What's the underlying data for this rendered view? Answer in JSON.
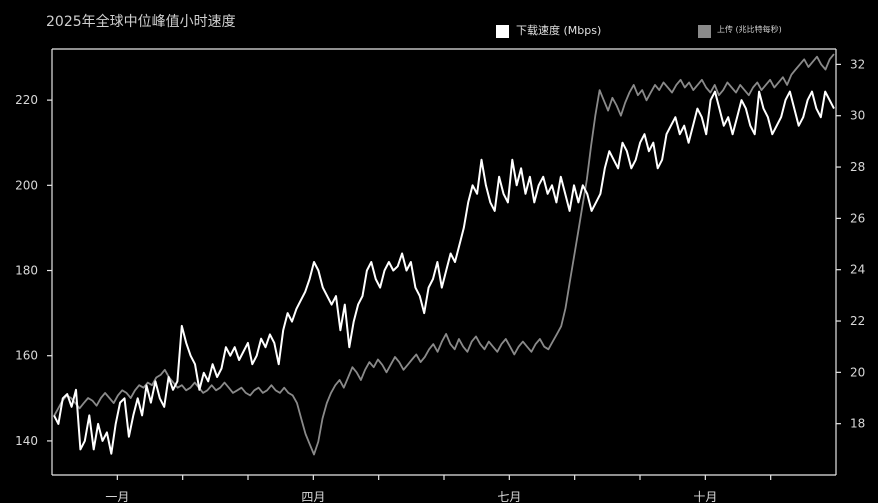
{
  "chart_data": {
    "type": "line",
    "title": "2025年全球中位峰值小时速度",
    "x_ticks": [
      "一月",
      "四月",
      "七月",
      "十月"
    ],
    "y_left": {
      "ticks": [
        140,
        160,
        180,
        200,
        220
      ],
      "lim": [
        132,
        232
      ]
    },
    "y_right": {
      "ticks": [
        18,
        20,
        22,
        24,
        26,
        28,
        30,
        32
      ],
      "lim": [
        16,
        32.6
      ]
    },
    "legend_position": "top",
    "grid": false,
    "series": [
      {
        "name": "下载速度 (Mbps)",
        "axis": "left",
        "color": "#ffffff",
        "values": [
          146,
          144,
          150,
          151,
          148,
          152,
          138,
          140,
          146,
          138,
          144,
          140,
          142,
          137,
          144,
          149,
          150,
          141,
          146,
          150,
          146,
          153,
          149,
          154,
          150,
          148,
          155,
          152,
          154,
          167,
          163,
          160,
          158,
          152,
          156,
          154,
          158,
          155,
          157,
          162,
          160,
          162,
          159,
          161,
          163,
          158,
          160,
          164,
          162,
          165,
          163,
          158,
          166,
          170,
          168,
          171,
          173,
          175,
          178,
          182,
          180,
          176,
          174,
          172,
          174,
          166,
          172,
          162,
          168,
          172,
          174,
          180,
          182,
          178,
          176,
          180,
          182,
          180,
          181,
          184,
          180,
          182,
          176,
          174,
          170,
          176,
          178,
          182,
          176,
          180,
          184,
          182,
          186,
          190,
          196,
          200,
          198,
          206,
          200,
          196,
          194,
          202,
          198,
          196,
          206,
          200,
          204,
          198,
          202,
          196,
          200,
          202,
          198,
          200,
          196,
          202,
          198,
          194,
          200,
          196,
          200,
          198,
          194,
          196,
          198,
          204,
          208,
          206,
          204,
          210,
          208,
          204,
          206,
          210,
          212,
          208,
          210,
          204,
          206,
          212,
          214,
          216,
          212,
          214,
          210,
          214,
          218,
          216,
          212,
          220,
          222,
          218,
          214,
          216,
          212,
          216,
          220,
          218,
          214,
          212,
          222,
          218,
          216,
          212,
          214,
          216,
          220,
          222,
          218,
          214,
          216,
          220,
          222,
          218,
          216,
          222,
          220,
          218
        ]
      },
      {
        "name": "上传 (兆比特每秒)",
        "axis": "right",
        "color": "#8a8a8a",
        "values": [
          18.3,
          18.6,
          18.9,
          19.1,
          19.0,
          18.8,
          18.6,
          18.8,
          19.0,
          18.9,
          18.7,
          19.0,
          19.2,
          19.0,
          18.8,
          19.1,
          19.3,
          19.2,
          19.0,
          19.3,
          19.5,
          19.4,
          19.6,
          19.5,
          19.8,
          19.9,
          20.1,
          19.8,
          19.6,
          19.4,
          19.5,
          19.3,
          19.4,
          19.6,
          19.4,
          19.2,
          19.3,
          19.5,
          19.3,
          19.4,
          19.6,
          19.4,
          19.2,
          19.3,
          19.4,
          19.2,
          19.1,
          19.3,
          19.4,
          19.2,
          19.3,
          19.5,
          19.3,
          19.2,
          19.4,
          19.2,
          19.1,
          18.8,
          18.2,
          17.6,
          17.2,
          16.8,
          17.3,
          18.2,
          18.8,
          19.2,
          19.5,
          19.7,
          19.4,
          19.8,
          20.2,
          20.0,
          19.7,
          20.1,
          20.4,
          20.2,
          20.5,
          20.3,
          20.0,
          20.3,
          20.6,
          20.4,
          20.1,
          20.3,
          20.5,
          20.7,
          20.4,
          20.6,
          20.9,
          21.1,
          20.8,
          21.2,
          21.5,
          21.1,
          20.9,
          21.3,
          21.0,
          20.8,
          21.2,
          21.4,
          21.1,
          20.9,
          21.2,
          21.0,
          20.8,
          21.1,
          21.3,
          21.0,
          20.7,
          21.0,
          21.2,
          21.0,
          20.8,
          21.1,
          21.3,
          21.0,
          20.9,
          21.2,
          21.5,
          21.8,
          22.5,
          23.5,
          24.5,
          25.5,
          26.5,
          27.5,
          28.8,
          30.0,
          31.0,
          30.6,
          30.2,
          30.7,
          30.4,
          30.0,
          30.5,
          30.9,
          31.2,
          30.8,
          31.0,
          30.6,
          30.9,
          31.2,
          31.0,
          31.3,
          31.1,
          30.9,
          31.2,
          31.4,
          31.1,
          31.3,
          31.0,
          31.2,
          31.4,
          31.1,
          30.9,
          31.2,
          30.8,
          31.0,
          31.3,
          31.1,
          30.9,
          31.2,
          31.0,
          30.8,
          31.1,
          31.3,
          31.0,
          31.2,
          31.4,
          31.1,
          31.3,
          31.5,
          31.2,
          31.6,
          31.8,
          32.0,
          32.2,
          31.9,
          32.1,
          32.3,
          32.0,
          31.8,
          32.2,
          32.4
        ]
      }
    ]
  }
}
